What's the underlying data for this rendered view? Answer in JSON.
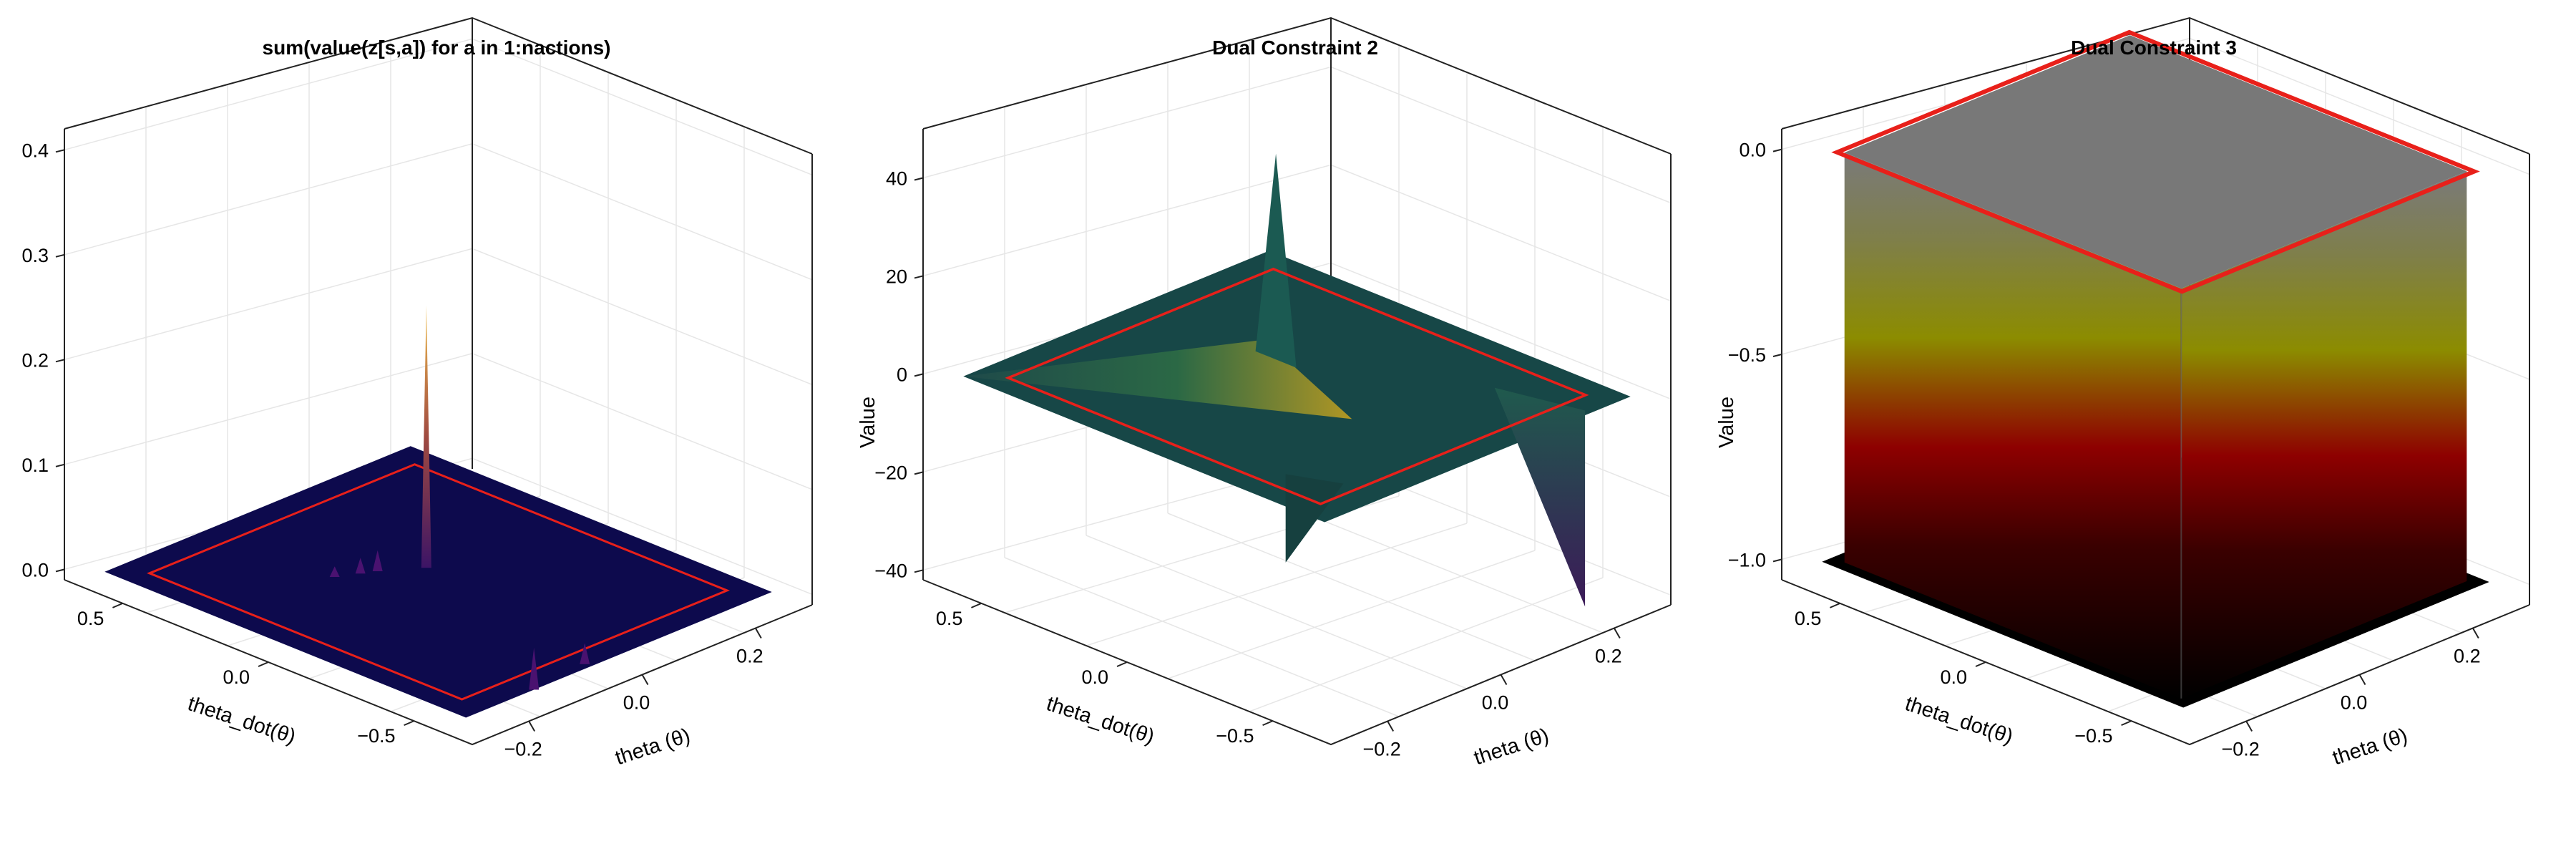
{
  "figure": {
    "background": "#ffffff"
  },
  "chart_data": [
    {
      "type": "surface3d",
      "title": "sum(value(z[s,a]) for a in 1:nactions)",
      "zlabel": "",
      "xlabel": "theta_dot(θ)",
      "ylabel": "theta (θ)",
      "x_ticks": [
        "0.5",
        "0.0",
        "−0.5"
      ],
      "y_ticks": [
        "−0.2",
        "0.0",
        "0.2"
      ],
      "z_ticks": [
        "0.0",
        "0.1",
        "0.2",
        "0.3",
        "0.4"
      ],
      "z_tick_values": [
        0.0,
        0.1,
        0.2,
        0.3,
        0.4
      ],
      "zlim": [
        -0.01,
        0.42
      ],
      "surface": {
        "base_value": 0.0,
        "colorscale": [
          "#0d0a4d",
          "#4a1270",
          "#c0602c",
          "#f2c14a"
        ],
        "spikes": [
          {
            "theta_dot": 0.08,
            "theta": 0.02,
            "value": 0.25
          },
          {
            "theta_dot": 0.15,
            "theta": -0.03,
            "value": 0.02
          },
          {
            "theta_dot": 0.17,
            "theta": -0.05,
            "value": 0.015
          },
          {
            "theta_dot": 0.2,
            "theta": -0.08,
            "value": 0.01
          },
          {
            "theta_dot": -0.62,
            "theta": -0.15,
            "value": 0.04
          },
          {
            "theta_dot": -0.6,
            "theta": -0.05,
            "value": 0.02
          }
        ]
      },
      "boundary_color": "#e8201a",
      "boundary_value": 0.0
    },
    {
      "type": "surface3d",
      "title": "Dual Constraint 2",
      "zlabel": "Value",
      "xlabel": "theta_dot(θ)",
      "ylabel": "theta (θ)",
      "x_ticks": [
        "0.5",
        "0.0",
        "−0.5"
      ],
      "y_ticks": [
        "−0.2",
        "0.0",
        "0.2"
      ],
      "z_ticks": [
        "−40",
        "−20",
        "0",
        "20",
        "40"
      ],
      "z_tick_values": [
        -40,
        -20,
        0,
        20,
        40
      ],
      "zlim": [
        -42,
        50
      ],
      "surface": {
        "base_value": 0,
        "colorscale": [
          "#3b1a57",
          "#1c3d4f",
          "#1f5e4e",
          "#6f7a2a",
          "#b8a32a"
        ],
        "spikes": [
          {
            "theta_dot": 0.15,
            "theta": 0.04,
            "value": 42
          },
          {
            "theta_dot": -0.6,
            "theta": 0.2,
            "value": -40
          },
          {
            "theta_dot": -0.35,
            "theta": -0.2,
            "value": -18
          }
        ]
      },
      "boundary_color": "#e8201a",
      "boundary_value": 0
    },
    {
      "type": "surface3d",
      "title": "Dual Constraint 3",
      "zlabel": "Value",
      "xlabel": "theta_dot(θ)",
      "ylabel": "theta (θ)",
      "x_ticks": [
        "0.5",
        "0.0",
        "−0.5"
      ],
      "y_ticks": [
        "−0.2",
        "0.0",
        "0.2"
      ],
      "z_ticks": [
        "−1.0",
        "−0.5",
        "0.0"
      ],
      "z_tick_values": [
        -1.0,
        -0.5,
        0.0
      ],
      "zlim": [
        -1.05,
        0.05
      ],
      "surface": {
        "base_value": -1.0,
        "plateau_value": 0.0,
        "colorscale": [
          "#000000",
          "#8a0000",
          "#8a8a00",
          "#787878"
        ]
      },
      "boundary_color": "#e8201a",
      "boundary_value": 0.0
    }
  ]
}
